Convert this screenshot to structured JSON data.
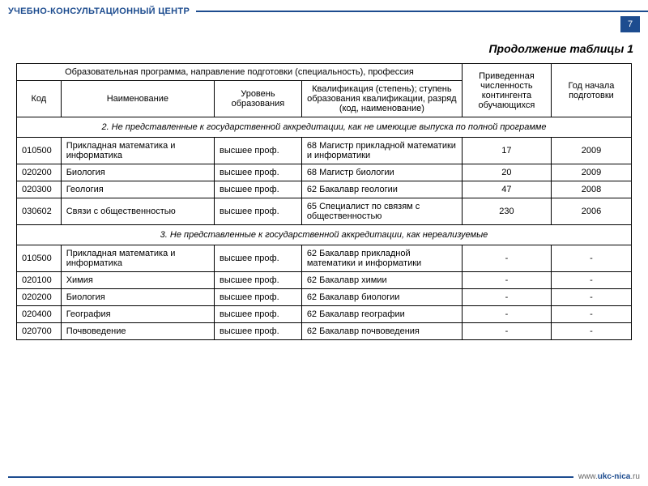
{
  "header": {
    "title": "УЧЕБНО-КОНСУЛЬТАЦИОННЫЙ ЦЕНТР",
    "page_number": "7"
  },
  "continuation": "Продолжение таблицы 1",
  "table": {
    "super_header": "Образовательная программа, направление подготовки (специальность), профессия",
    "cols": {
      "kod": "Код",
      "name": "Наименование",
      "level": "Уровень образования",
      "qual": "Квалификация (степень); ступень образования квалификации, разряд (код, наименование)",
      "count": "Приведенная численность контингента обучающихся",
      "year": "Год начала подготовки"
    },
    "section2": "2. Не представленные к государственной аккредитации, как не имеющие выпуска по полной программе",
    "rows2": [
      {
        "kod": "010500",
        "name": "Прикладная математика и информатика",
        "level": "высшее проф.",
        "qual": "68 Магистр прикладной математики и информатики",
        "count": "17",
        "year": "2009"
      },
      {
        "kod": "020200",
        "name": "Биология",
        "level": "высшее проф.",
        "qual": "68 Магистр биологии",
        "count": "20",
        "year": "2009"
      },
      {
        "kod": "020300",
        "name": "Геология",
        "level": "высшее проф.",
        "qual": "62 Бакалавр геологии",
        "count": "47",
        "year": "2008"
      },
      {
        "kod": "030602",
        "name": "Связи с общественностью",
        "level": "высшее проф.",
        "qual": "65 Специалист по связям с общественностью",
        "count": "230",
        "year": "2006"
      }
    ],
    "section3": "3. Не представленные к государственной аккредитации, как нереализуемые",
    "rows3": [
      {
        "kod": "010500",
        "name": "Прикладная математика и информатика",
        "level": "высшее проф.",
        "qual": "62 Бакалавр прикладной математики и информатики",
        "count": "-",
        "year": "-"
      },
      {
        "kod": "020100",
        "name": "Химия",
        "level": "высшее проф.",
        "qual": "62 Бакалавр химии",
        "count": "-",
        "year": "-"
      },
      {
        "kod": "020200",
        "name": "Биология",
        "level": "высшее проф.",
        "qual": "62 Бакалавр биологии",
        "count": "-",
        "year": "-"
      },
      {
        "kod": "020400",
        "name": "География",
        "level": "высшее проф.",
        "qual": "62 Бакалавр географии",
        "count": "-",
        "year": "-"
      },
      {
        "kod": "020700",
        "name": "Почвоведение",
        "level": "высшее проф.",
        "qual": "62 Бакалавр почвоведения",
        "count": "-",
        "year": "-"
      }
    ]
  },
  "footer": {
    "prefix": "www.",
    "domain": "ukc-nica",
    "tld": ".ru"
  }
}
